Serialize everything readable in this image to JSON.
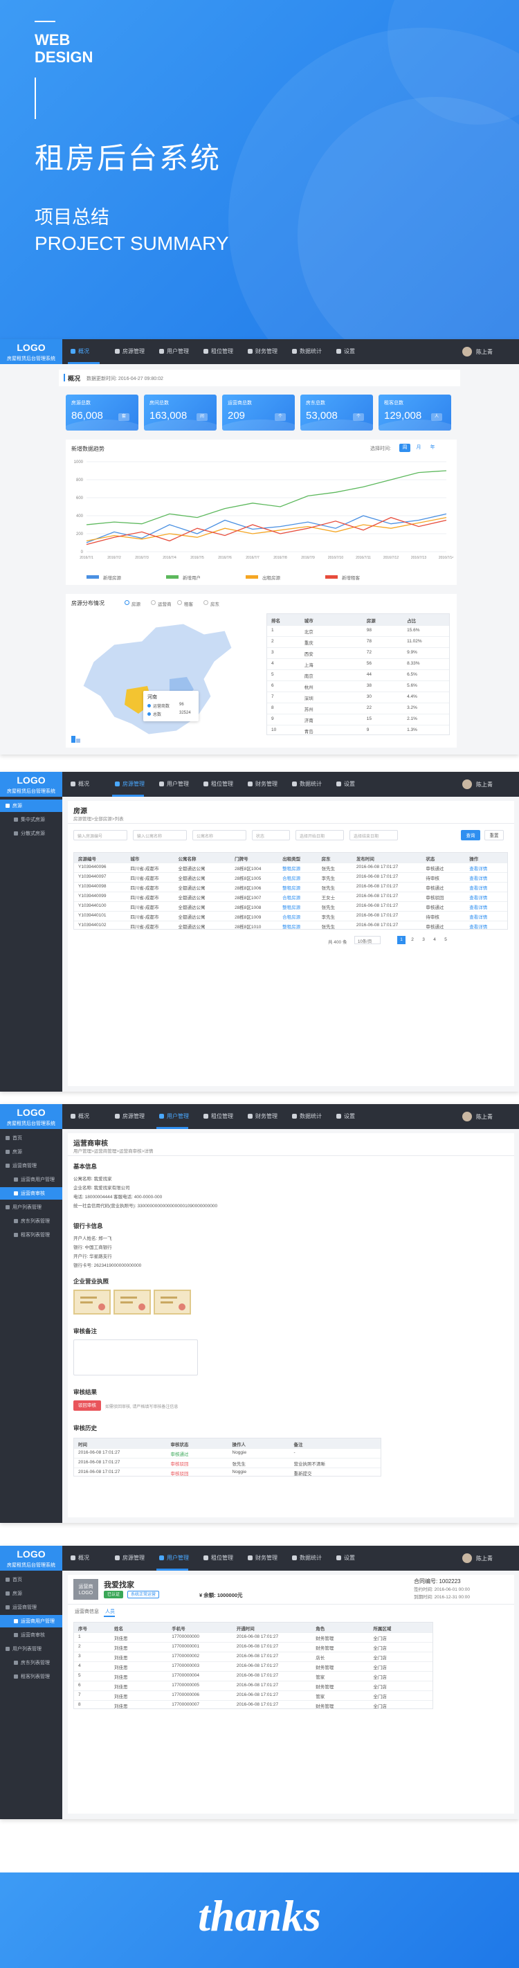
{
  "hero": {
    "tag": [
      "WEB",
      "DESIGN"
    ],
    "title": "租房后台系统",
    "subtitle_cn": "项目总结",
    "subtitle_en": "PROJECT SUMMARY"
  },
  "nav": {
    "logo": "LOGO",
    "system": "房屋租赁后台管理系统",
    "items": [
      "概况",
      "房源管理",
      "用户管理",
      "租位管理",
      "财务管理",
      "数据统计",
      "设置"
    ],
    "user": "陈上青"
  },
  "overview": {
    "title": "概况",
    "updated": "数据更新时间: 2016-04-27 09:80:02",
    "stats": [
      {
        "label": "房源总数",
        "value": "86,008",
        "unit": "套"
      },
      {
        "label": "房间总数",
        "value": "163,008",
        "unit": "间"
      },
      {
        "label": "运营商总数",
        "value": "209",
        "unit": "个"
      },
      {
        "label": "房东总数",
        "value": "53,008",
        "unit": "个"
      },
      {
        "label": "租客总数",
        "value": "129,008",
        "unit": "人"
      }
    ],
    "trend": {
      "title": "新增数据趋势",
      "range_label": "选择时间:",
      "ranges": [
        "周",
        "月",
        "年"
      ],
      "categories": [
        "2016/7/1",
        "2016/7/2",
        "2016/7/3",
        "2016/7/4",
        "2016/7/5",
        "2016/7/6",
        "2016/7/7",
        "2016/7/8",
        "2016/7/9",
        "2016/7/10",
        "2016/7/11",
        "2016/7/12",
        "2016/7/13",
        "2016/7/14"
      ],
      "ylim": [
        0,
        1000
      ],
      "yticks": [
        0,
        200,
        400,
        600,
        800,
        1000
      ],
      "series": [
        {
          "name": "新增房源",
          "color": "#4a90e2",
          "values": [
            100,
            220,
            150,
            300,
            200,
            350,
            250,
            280,
            330,
            260,
            400,
            310,
            350,
            420
          ]
        },
        {
          "name": "新增用户",
          "color": "#5cb85c",
          "values": [
            300,
            330,
            310,
            420,
            380,
            480,
            540,
            500,
            620,
            660,
            720,
            800,
            880,
            900
          ]
        },
        {
          "name": "出租房源",
          "color": "#f5a623",
          "values": [
            120,
            180,
            140,
            200,
            160,
            260,
            200,
            240,
            280,
            220,
            300,
            260,
            320,
            380
          ]
        },
        {
          "name": "新增租客",
          "color": "#e74c3c",
          "values": [
            80,
            160,
            220,
            120,
            260,
            180,
            300,
            200,
            260,
            340,
            240,
            380,
            280,
            350
          ]
        }
      ]
    },
    "distribution": {
      "title": "房源分布情况",
      "tabs": [
        "房源",
        "运营商",
        "租客",
        "房东"
      ],
      "tooltip": {
        "name": "河南",
        "rows": [
          [
            "运营商数",
            "96"
          ],
          [
            "总数",
            "32524"
          ]
        ]
      },
      "table": {
        "headers": [
          "排名",
          "城市",
          "房源",
          "占比"
        ],
        "rows": [
          [
            "1",
            "北京",
            "98",
            "15.6%"
          ],
          [
            "2",
            "重庆",
            "78",
            "11.02%"
          ],
          [
            "3",
            "西安",
            "72",
            "9.9%"
          ],
          [
            "4",
            "上海",
            "56",
            "8.33%"
          ],
          [
            "5",
            "南京",
            "44",
            "6.5%"
          ],
          [
            "6",
            "杭州",
            "38",
            "5.6%"
          ],
          [
            "7",
            "深圳",
            "30",
            "4.4%"
          ],
          [
            "8",
            "苏州",
            "22",
            "3.2%"
          ],
          [
            "9",
            "济南",
            "15",
            "2.1%"
          ],
          [
            "10",
            "青岛",
            "9",
            "1.3%"
          ]
        ]
      }
    }
  },
  "houses": {
    "title": "房源",
    "crumb": "房源管理>全部房源>列表",
    "sidebar": [
      "房源",
      "集中式房源",
      "分散式房源"
    ],
    "filters": [
      "输入房源编号",
      "输入公寓名称",
      "公寓名称",
      "状态",
      "选择开始日期",
      "选择结束日期"
    ],
    "buttons": [
      "查询",
      "重置"
    ],
    "table": {
      "headers": [
        "房源编号",
        "城市",
        "公寓名称",
        "门牌号",
        "出租类型",
        "房东",
        "发布时间",
        "状态",
        "操作"
      ],
      "rows": [
        [
          "Y1039440096",
          "四川省-成都市",
          "全都通达公寓",
          "28栋8区1004",
          "整租房源",
          "张先生",
          "2016-06-08 17:01:27",
          "审核通过",
          "查看详情"
        ],
        [
          "Y1039440097",
          "四川省-成都市",
          "全都通达公寓",
          "28栋8区1005",
          "合租房源",
          "李先生",
          "2016-06-08 17:01:27",
          "待审核",
          "查看详情"
        ],
        [
          "Y1039440098",
          "四川省-成都市",
          "全都通达公寓",
          "28栋8区1006",
          "整租房源",
          "张先生",
          "2016-06-08 17:01:27",
          "审核通过",
          "查看详情"
        ],
        [
          "Y1039440099",
          "四川省-成都市",
          "全都通达公寓",
          "28栋8区1007",
          "合租房源",
          "王女士",
          "2016-06-08 17:01:27",
          "审核驳回",
          "查看详情"
        ],
        [
          "Y1039440100",
          "四川省-成都市",
          "全都通达公寓",
          "28栋8区1008",
          "整租房源",
          "张先生",
          "2016-06-08 17:01:27",
          "审核通过",
          "查看详情"
        ],
        [
          "Y1039440101",
          "四川省-成都市",
          "全都通达公寓",
          "28栋8区1009",
          "合租房源",
          "李先生",
          "2016-06-08 17:01:27",
          "待审核",
          "查看详情"
        ],
        [
          "Y1039440102",
          "四川省-成都市",
          "全都通达公寓",
          "28栋8区1010",
          "整租房源",
          "张先生",
          "2016-06-08 17:01:27",
          "审核通过",
          "查看详情"
        ]
      ]
    },
    "pagination": {
      "total": "共 400 条",
      "per_page": "10条/页",
      "pages": [
        "1",
        "2",
        "3",
        "4",
        "5"
      ]
    }
  },
  "audit": {
    "title": "运营商审核",
    "crumb": "用户管理>运营商管理>运营商审核>详情",
    "sidebar": [
      "首页",
      "房源",
      "运营商管理",
      "运营商用户管理",
      "运营商审核",
      "用户列表管理",
      "房东列表管理",
      "租客列表管理"
    ],
    "basic": {
      "title": "基本信息",
      "lines": [
        "公寓名称: 我爱找家",
        "企业名称: 我爱找家有限公司",
        "电话: 18000004444    客服电话: 400-0000-000",
        "统一社会信用代码(营业执照号): 33000000000000000001090000000000"
      ]
    },
    "bank": {
      "title": "银行卡信息",
      "lines": [
        "开户人姓名: 郑一飞",
        "银行: 中国工商银行",
        "开户行: 华星路支行",
        "银行卡号: 2623419000000000000"
      ]
    },
    "license": {
      "title": "企业营业执照"
    },
    "remark": {
      "title": "审核备注"
    },
    "result": {
      "title": "审核结果",
      "button": "驳回审核",
      "note": "如需驳回审核, 请严格填写审核备注信息"
    },
    "history": {
      "title": "审核历史",
      "headers": [
        "时间",
        "审核状态",
        "操作人",
        "备注"
      ],
      "rows": [
        [
          "2016-06-08 17:01:27",
          "审核通过",
          "Noggie",
          "-"
        ],
        [
          "2016-06-08 17:01:27",
          "审核驳回",
          "张先生",
          "营业执照不清晰"
        ],
        [
          "2016-06-08 17:01:27",
          "审核驳回",
          "Noggie",
          "重新提交"
        ]
      ]
    }
  },
  "operator": {
    "sidebar": [
      "首页",
      "房源",
      "运营商管理",
      "运营商用户管理",
      "运营商审核",
      "用户列表管理",
      "房东列表管理",
      "租客列表管理"
    ],
    "logo": "运营商LOGO",
    "name": "我爱找家",
    "tags": [
      "已认证",
      "系统正常运营"
    ],
    "balance": "¥ 余额: 1000000元",
    "contract": [
      "合同编号: 1002223",
      "签约时间: 2016-06-01 00:00",
      "到期时间: 2016-12-31 00:00"
    ],
    "tabs": [
      "运营商信息",
      "人员"
    ],
    "table": {
      "headers": [
        "序号",
        "姓名",
        "手机号",
        "开通时间",
        "角色",
        "所属区域"
      ],
      "rows": [
        [
          "1",
          "刘佳思",
          "17700000000",
          "2016-06-08 17:01:27",
          "财务管理",
          "全门店"
        ],
        [
          "2",
          "刘佳思",
          "17700000001",
          "2016-06-08 17:01:27",
          "财务管理",
          "全门店"
        ],
        [
          "3",
          "刘佳思",
          "17700000002",
          "2016-06-08 17:01:27",
          "店长",
          "全门店"
        ],
        [
          "4",
          "刘佳思",
          "17700000003",
          "2016-06-08 17:01:27",
          "财务管理",
          "全门店"
        ],
        [
          "5",
          "刘佳思",
          "17700000004",
          "2016-06-08 17:01:27",
          "管家",
          "全门店"
        ],
        [
          "6",
          "刘佳思",
          "17700000005",
          "2016-06-08 17:01:27",
          "财务管理",
          "全门店"
        ],
        [
          "7",
          "刘佳思",
          "17700000006",
          "2016-06-08 17:01:27",
          "管家",
          "全门店"
        ],
        [
          "8",
          "刘佳思",
          "17700000007",
          "2016-06-08 17:01:27",
          "财务管理",
          "全门店"
        ]
      ]
    }
  },
  "thanks": "thanks"
}
